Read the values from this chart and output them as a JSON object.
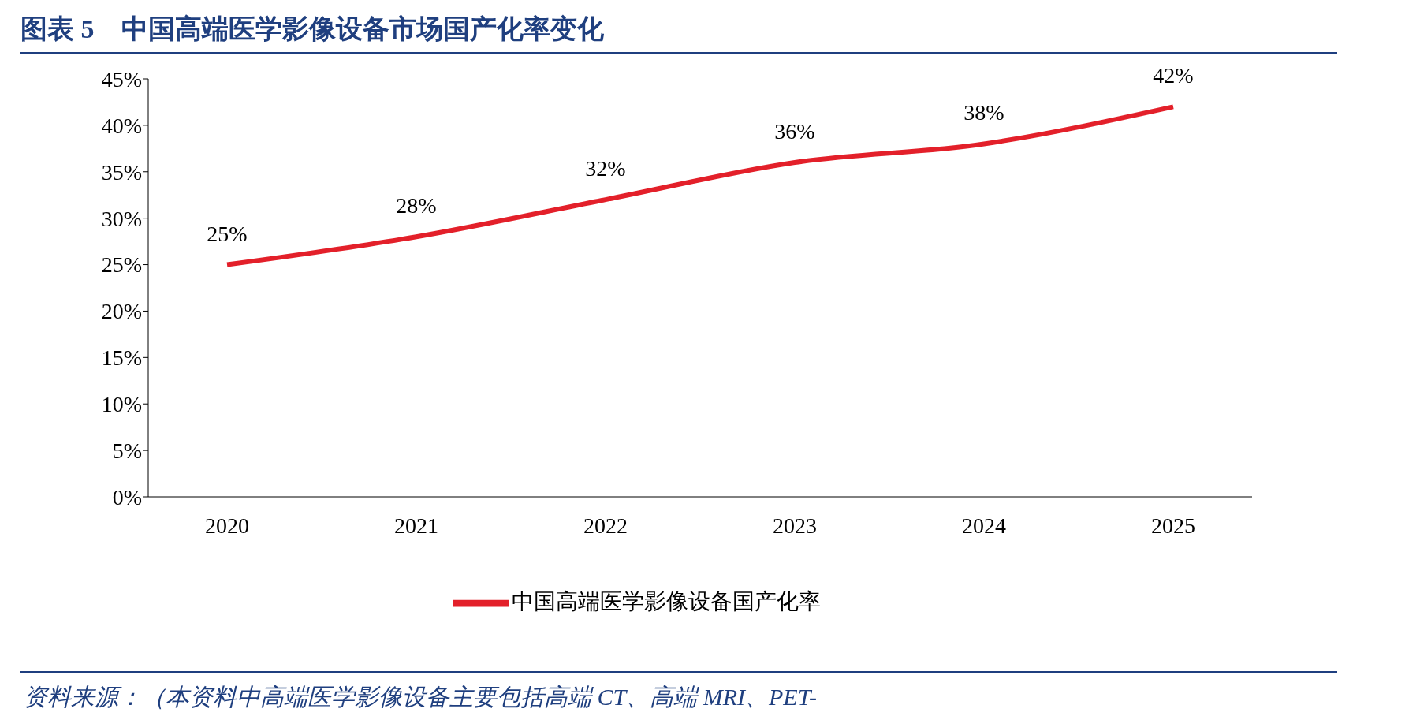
{
  "chart_data": {
    "type": "line",
    "title": "图表 5　中国高端医学影像设备市场国产化率变化",
    "categories": [
      "2020",
      "2021",
      "2022",
      "2023",
      "2024",
      "2025"
    ],
    "series": [
      {
        "name": "中国高端医学影像设备国产化率",
        "color": "#e3202a",
        "values": [
          25,
          28,
          32,
          36,
          38,
          42
        ],
        "value_labels": [
          "25%",
          "28%",
          "32%",
          "36%",
          "38%",
          "42%"
        ]
      }
    ],
    "ylim": [
      0,
      45
    ],
    "yticks": [
      {
        "value": 0,
        "label": "0%"
      },
      {
        "value": 5,
        "label": "5%"
      },
      {
        "value": 10,
        "label": "10%"
      },
      {
        "value": 15,
        "label": "15%"
      },
      {
        "value": 20,
        "label": "20%"
      },
      {
        "value": 25,
        "label": "25%"
      },
      {
        "value": 30,
        "label": "30%"
      },
      {
        "value": 35,
        "label": "35%"
      },
      {
        "value": 40,
        "label": "40%"
      },
      {
        "value": 45,
        "label": "45%"
      }
    ],
    "grid": false,
    "legend": "bottom",
    "marker": "none",
    "line_style": "solid",
    "annotations": [
      "资料来源：（本资料中高端医学影像设备主要包括高端 CT、高端 MRI、PET-"
    ]
  }
}
